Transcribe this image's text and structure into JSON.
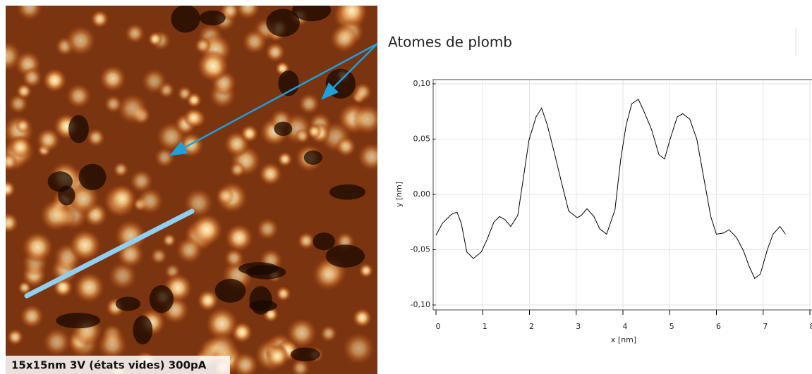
{
  "chart_data": {
    "type": "line",
    "annotation": "Atomes de plomb",
    "image_caption": "15x15nm  3V (états vides)  300pA",
    "x_label": "x [nm]",
    "y_label": "y [nm]",
    "xlim": [
      0,
      8
    ],
    "xticks": [
      0,
      1,
      2,
      3,
      4,
      5,
      6,
      7,
      8
    ],
    "ylim": [
      -0.1,
      0.1
    ],
    "yticks": [
      {
        "value": -0.1,
        "label": "-0,10"
      },
      {
        "value": -0.05,
        "label": "-0,05"
      },
      {
        "value": 0,
        "label": "0,00"
      },
      {
        "value": 0.05,
        "label": "0,05"
      },
      {
        "value": 0.1,
        "label": "0,10"
      }
    ],
    "grid": true,
    "x": [
      0,
      0.14,
      0.33,
      0.45,
      0.54,
      0.66,
      0.8,
      0.97,
      1.09,
      1.24,
      1.36,
      1.48,
      1.6,
      1.75,
      1.87,
      1.99,
      2.14,
      2.26,
      2.38,
      2.53,
      2.68,
      2.84,
      3.02,
      3.11,
      3.23,
      3.38,
      3.5,
      3.65,
      3.83,
      3.95,
      4.07,
      4.19,
      4.33,
      4.46,
      4.61,
      4.77,
      4.89,
      5.01,
      5.16,
      5.28,
      5.43,
      5.58,
      5.73,
      5.88,
      6.0,
      6.15,
      6.27,
      6.43,
      6.58,
      6.7,
      6.82,
      6.94,
      7.09,
      7.21,
      7.36,
      7.48
    ],
    "series": [
      {
        "color": "#000000",
        "values": [
          -0.037,
          -0.026,
          -0.018,
          -0.016,
          -0.026,
          -0.052,
          -0.058,
          -0.052,
          -0.041,
          -0.025,
          -0.02,
          -0.023,
          -0.029,
          -0.019,
          0.015,
          0.049,
          0.07,
          0.078,
          0.063,
          0.038,
          0.012,
          -0.015,
          -0.021,
          -0.019,
          -0.013,
          -0.02,
          -0.031,
          -0.036,
          -0.014,
          0.031,
          0.063,
          0.082,
          0.086,
          0.074,
          0.059,
          0.036,
          0.032,
          0.05,
          0.07,
          0.073,
          0.068,
          0.05,
          0.015,
          -0.02,
          -0.036,
          -0.035,
          -0.032,
          -0.039,
          -0.051,
          -0.065,
          -0.076,
          -0.072,
          -0.05,
          -0.036,
          -0.029,
          -0.036
        ]
      }
    ]
  }
}
